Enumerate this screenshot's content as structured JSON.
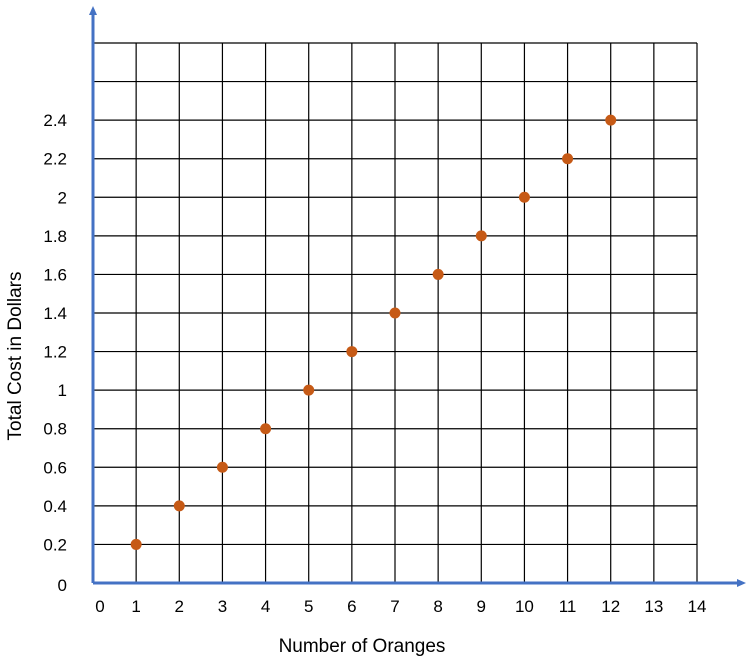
{
  "chart_data": {
    "type": "scatter",
    "title": "",
    "xlabel": "Number of Oranges",
    "ylabel": "Total Cost in Dollars",
    "xlim": [
      0,
      14
    ],
    "ylim": [
      0,
      2.8
    ],
    "grid": true,
    "x_ticks": [
      "0",
      "1",
      "2",
      "3",
      "4",
      "5",
      "6",
      "7",
      "8",
      "9",
      "10",
      "11",
      "12",
      "13",
      "14"
    ],
    "y_ticks": [
      "0",
      "0.2",
      "0.4",
      "0.6",
      "0.8",
      "1",
      "1.2",
      "1.4",
      "1.6",
      "1.8",
      "2",
      "2.2",
      "2.4"
    ],
    "series": [
      {
        "x": [
          1,
          2,
          3,
          4,
          5,
          6,
          7,
          8,
          9,
          10,
          11,
          12
        ],
        "y": [
          0.2,
          0.4,
          0.6,
          0.8,
          1.0,
          1.2,
          1.4,
          1.6,
          1.8,
          2.0,
          2.2,
          2.4
        ]
      }
    ],
    "colors": {
      "points": "#c65a16",
      "axes": "#4472c4",
      "grid": "#000000"
    }
  }
}
